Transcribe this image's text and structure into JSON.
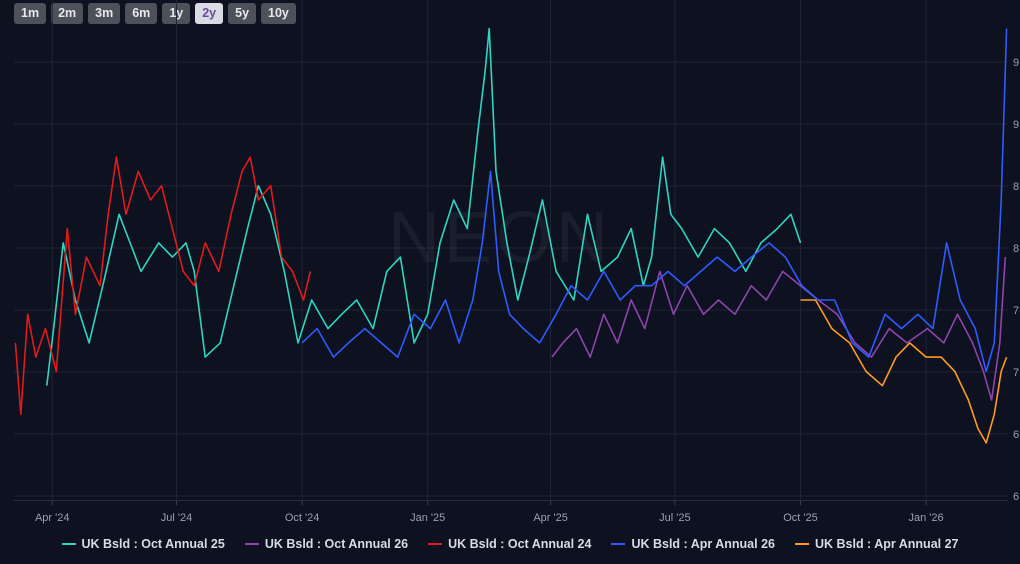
{
  "toolbar": {
    "ranges": [
      "1m",
      "2m",
      "3m",
      "6m",
      "1y",
      "2y",
      "5y",
      "10y"
    ],
    "active_range": "2y"
  },
  "watermark": "NEON",
  "chart_data": {
    "type": "line",
    "x_tick_labels": [
      "Apr '24",
      "Jul '24",
      "Oct '24",
      "Jan '25",
      "Apr '25",
      "Jul '25",
      "Oct '25",
      "Jan '26"
    ],
    "y_tick_labels": [
      "9",
      "9",
      "8",
      "8",
      "7",
      "7",
      "6",
      "6"
    ],
    "xlim": [
      "2024-03-04",
      "2026-03-02"
    ],
    "ylim": [
      5.9,
      9.4
    ],
    "grid": true,
    "legend": "bottom",
    "series": [
      {
        "name": "UK Bsld : Oct Annual 25",
        "color": "#2ed6bf",
        "points": [
          [
            "2024-03-28",
            6.7
          ],
          [
            "2024-04-02",
            7.1
          ],
          [
            "2024-04-09",
            7.7
          ],
          [
            "2024-04-18",
            7.3
          ],
          [
            "2024-04-28",
            7.0
          ],
          [
            "2024-05-08",
            7.4
          ],
          [
            "2024-05-20",
            7.9
          ],
          [
            "2024-05-28",
            7.7
          ],
          [
            "2024-06-05",
            7.5
          ],
          [
            "2024-06-18",
            7.7
          ],
          [
            "2024-06-28",
            7.6
          ],
          [
            "2024-07-08",
            7.7
          ],
          [
            "2024-07-14",
            7.5
          ],
          [
            "2024-07-22",
            6.9
          ],
          [
            "2024-08-02",
            7.0
          ],
          [
            "2024-08-12",
            7.4
          ],
          [
            "2024-08-22",
            7.8
          ],
          [
            "2024-08-30",
            8.1
          ],
          [
            "2024-09-08",
            7.9
          ],
          [
            "2024-09-18",
            7.5
          ],
          [
            "2024-09-28",
            7.0
          ],
          [
            "2024-10-08",
            7.3
          ],
          [
            "2024-10-20",
            7.1
          ],
          [
            "2024-10-30",
            7.2
          ],
          [
            "2024-11-10",
            7.3
          ],
          [
            "2024-11-22",
            7.1
          ],
          [
            "2024-12-02",
            7.5
          ],
          [
            "2024-12-12",
            7.6
          ],
          [
            "2024-12-22",
            7.0
          ],
          [
            "2025-01-01",
            7.2
          ],
          [
            "2025-01-10",
            7.7
          ],
          [
            "2025-01-20",
            8.0
          ],
          [
            "2025-01-30",
            7.8
          ],
          [
            "2025-02-07",
            8.5
          ],
          [
            "2025-02-12",
            8.9
          ],
          [
            "2025-02-15",
            9.2
          ],
          [
            "2025-02-20",
            8.2
          ],
          [
            "2025-02-28",
            7.7
          ],
          [
            "2025-03-08",
            7.3
          ],
          [
            "2025-03-16",
            7.6
          ],
          [
            "2025-03-26",
            8.0
          ],
          [
            "2025-04-05",
            7.5
          ],
          [
            "2025-04-18",
            7.3
          ],
          [
            "2025-04-28",
            7.9
          ],
          [
            "2025-05-08",
            7.5
          ],
          [
            "2025-05-20",
            7.6
          ],
          [
            "2025-05-30",
            7.8
          ],
          [
            "2025-06-08",
            7.4
          ],
          [
            "2025-06-14",
            7.6
          ],
          [
            "2025-06-22",
            8.3
          ],
          [
            "2025-06-28",
            7.9
          ],
          [
            "2025-07-06",
            7.8
          ],
          [
            "2025-07-18",
            7.6
          ],
          [
            "2025-07-30",
            7.8
          ],
          [
            "2025-08-10",
            7.7
          ],
          [
            "2025-08-22",
            7.5
          ],
          [
            "2025-09-02",
            7.7
          ],
          [
            "2025-09-14",
            7.8
          ],
          [
            "2025-09-24",
            7.9
          ],
          [
            "2025-10-01",
            7.7
          ]
        ]
      },
      {
        "name": "UK Bsld : Oct Annual 26",
        "color": "#8e44ad",
        "points": [
          [
            "2025-04-02",
            6.9
          ],
          [
            "2025-04-10",
            7.0
          ],
          [
            "2025-04-20",
            7.1
          ],
          [
            "2025-04-30",
            6.9
          ],
          [
            "2025-05-10",
            7.2
          ],
          [
            "2025-05-20",
            7.0
          ],
          [
            "2025-05-30",
            7.3
          ],
          [
            "2025-06-09",
            7.1
          ],
          [
            "2025-06-20",
            7.5
          ],
          [
            "2025-06-30",
            7.2
          ],
          [
            "2025-07-10",
            7.4
          ],
          [
            "2025-07-22",
            7.2
          ],
          [
            "2025-08-02",
            7.3
          ],
          [
            "2025-08-14",
            7.2
          ],
          [
            "2025-08-26",
            7.4
          ],
          [
            "2025-09-06",
            7.3
          ],
          [
            "2025-09-18",
            7.5
          ],
          [
            "2025-10-01",
            7.4
          ],
          [
            "2025-10-14",
            7.3
          ],
          [
            "2025-10-28",
            7.2
          ],
          [
            "2025-11-10",
            7.0
          ],
          [
            "2025-11-22",
            6.9
          ],
          [
            "2025-12-05",
            7.1
          ],
          [
            "2025-12-18",
            7.0
          ],
          [
            "2026-01-02",
            7.1
          ],
          [
            "2026-01-14",
            7.0
          ],
          [
            "2026-01-24",
            7.2
          ],
          [
            "2026-02-04",
            7.0
          ],
          [
            "2026-02-12",
            6.8
          ],
          [
            "2026-02-18",
            6.6
          ],
          [
            "2026-02-24",
            7.0
          ],
          [
            "2026-02-28",
            7.6
          ]
        ]
      },
      {
        "name": "UK Bsld : Oct Annual 24",
        "color": "#e01b1b",
        "points": [
          [
            "2024-03-05",
            7.0
          ],
          [
            "2024-03-09",
            6.5
          ],
          [
            "2024-03-14",
            7.2
          ],
          [
            "2024-03-20",
            6.9
          ],
          [
            "2024-03-27",
            7.1
          ],
          [
            "2024-04-04",
            6.8
          ],
          [
            "2024-04-12",
            7.8
          ],
          [
            "2024-04-18",
            7.2
          ],
          [
            "2024-04-26",
            7.6
          ],
          [
            "2024-05-06",
            7.4
          ],
          [
            "2024-05-12",
            7.9
          ],
          [
            "2024-05-18",
            8.3
          ],
          [
            "2024-05-25",
            7.9
          ],
          [
            "2024-06-03",
            8.2
          ],
          [
            "2024-06-12",
            8.0
          ],
          [
            "2024-06-20",
            8.1
          ],
          [
            "2024-06-28",
            7.8
          ],
          [
            "2024-07-06",
            7.5
          ],
          [
            "2024-07-14",
            7.4
          ],
          [
            "2024-07-22",
            7.7
          ],
          [
            "2024-08-01",
            7.5
          ],
          [
            "2024-08-10",
            7.9
          ],
          [
            "2024-08-18",
            8.2
          ],
          [
            "2024-08-24",
            8.3
          ],
          [
            "2024-08-30",
            8.0
          ],
          [
            "2024-09-08",
            8.1
          ],
          [
            "2024-09-16",
            7.6
          ],
          [
            "2024-09-24",
            7.5
          ],
          [
            "2024-10-02",
            7.3
          ],
          [
            "2024-10-07",
            7.5
          ]
        ]
      },
      {
        "name": "UK Bsld : Apr Annual 26",
        "color": "#2f5bff",
        "points": [
          [
            "2024-10-01",
            7.0
          ],
          [
            "2024-10-12",
            7.1
          ],
          [
            "2024-10-24",
            6.9
          ],
          [
            "2024-11-04",
            7.0
          ],
          [
            "2024-11-16",
            7.1
          ],
          [
            "2024-11-28",
            7.0
          ],
          [
            "2024-12-10",
            6.9
          ],
          [
            "2024-12-22",
            7.2
          ],
          [
            "2025-01-03",
            7.1
          ],
          [
            "2025-01-14",
            7.3
          ],
          [
            "2025-01-24",
            7.0
          ],
          [
            "2025-02-03",
            7.3
          ],
          [
            "2025-02-10",
            7.7
          ],
          [
            "2025-02-16",
            8.2
          ],
          [
            "2025-02-22",
            7.5
          ],
          [
            "2025-03-02",
            7.2
          ],
          [
            "2025-03-12",
            7.1
          ],
          [
            "2025-03-24",
            7.0
          ],
          [
            "2025-04-05",
            7.2
          ],
          [
            "2025-04-16",
            7.4
          ],
          [
            "2025-04-28",
            7.3
          ],
          [
            "2025-05-10",
            7.5
          ],
          [
            "2025-05-22",
            7.3
          ],
          [
            "2025-06-02",
            7.4
          ],
          [
            "2025-06-14",
            7.4
          ],
          [
            "2025-06-26",
            7.5
          ],
          [
            "2025-07-08",
            7.4
          ],
          [
            "2025-07-20",
            7.5
          ],
          [
            "2025-08-01",
            7.6
          ],
          [
            "2025-08-14",
            7.5
          ],
          [
            "2025-08-26",
            7.6
          ],
          [
            "2025-09-08",
            7.7
          ],
          [
            "2025-09-20",
            7.6
          ],
          [
            "2025-10-02",
            7.4
          ],
          [
            "2025-10-14",
            7.3
          ],
          [
            "2025-10-26",
            7.3
          ],
          [
            "2025-11-08",
            7.0
          ],
          [
            "2025-11-20",
            6.9
          ],
          [
            "2025-12-02",
            7.2
          ],
          [
            "2025-12-14",
            7.1
          ],
          [
            "2025-12-26",
            7.2
          ],
          [
            "2026-01-06",
            7.1
          ],
          [
            "2026-01-16",
            7.7
          ],
          [
            "2026-01-26",
            7.3
          ],
          [
            "2026-02-06",
            7.1
          ],
          [
            "2026-02-14",
            6.8
          ],
          [
            "2026-02-20",
            7.0
          ],
          [
            "2026-02-25",
            8.0
          ],
          [
            "2026-03-01",
            9.2
          ]
        ]
      },
      {
        "name": "UK Bsld : Apr Annual 27",
        "color": "#ff9a1f",
        "points": [
          [
            "2025-10-01",
            7.3
          ],
          [
            "2025-10-12",
            7.3
          ],
          [
            "2025-10-24",
            7.1
          ],
          [
            "2025-11-06",
            7.0
          ],
          [
            "2025-11-18",
            6.8
          ],
          [
            "2025-11-30",
            6.7
          ],
          [
            "2025-12-10",
            6.9
          ],
          [
            "2025-12-20",
            7.0
          ],
          [
            "2026-01-01",
            6.9
          ],
          [
            "2026-01-12",
            6.9
          ],
          [
            "2026-01-22",
            6.8
          ],
          [
            "2026-02-01",
            6.6
          ],
          [
            "2026-02-08",
            6.4
          ],
          [
            "2026-02-14",
            6.3
          ],
          [
            "2026-02-20",
            6.5
          ],
          [
            "2026-02-25",
            6.8
          ],
          [
            "2026-03-01",
            6.9
          ]
        ]
      }
    ]
  }
}
